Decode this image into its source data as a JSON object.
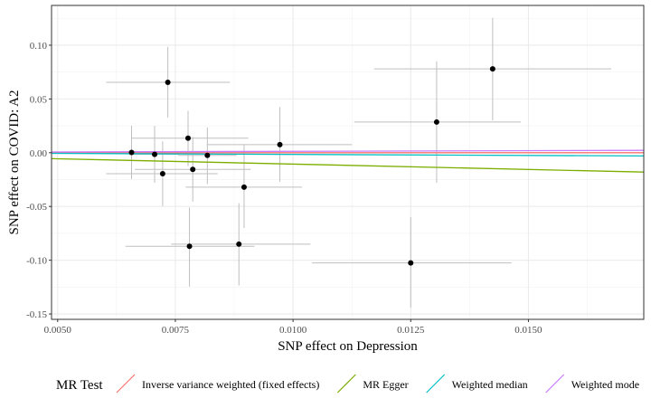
{
  "chart_data": {
    "type": "scatter",
    "xlabel": "SNP effect on Depression",
    "ylabel": "SNP effect on COVID: A2",
    "xlim": [
      0.00487,
      0.01745
    ],
    "ylim": [
      -0.155,
      0.137
    ],
    "x_ticks": [
      0.005,
      0.0075,
      0.01,
      0.0125,
      0.015
    ],
    "x_tick_labels": [
      "0.0050",
      "0.0075",
      "0.0100",
      "0.0125",
      "0.0150"
    ],
    "y_ticks": [
      -0.15,
      -0.1,
      -0.05,
      0.0,
      0.05,
      0.1
    ],
    "y_tick_labels": [
      "-0.15",
      "-0.10",
      "-0.05",
      "0.00",
      "0.05",
      "0.10"
    ],
    "grid": true,
    "points": [
      {
        "x": 0.00734,
        "y": 0.0655,
        "xmin": 0.00603,
        "xmax": 0.00866,
        "ymin": 0.0327,
        "ymax": 0.0985
      },
      {
        "x": 0.00657,
        "y": 0.0003,
        "xmin": 0.00603,
        "xmax": 0.00712,
        "ymin": -0.0245,
        "ymax": 0.025
      },
      {
        "x": 0.00706,
        "y": -0.0015,
        "xmin": 0.00657,
        "xmax": 0.00758,
        "ymin": -0.028,
        "ymax": 0.025
      },
      {
        "x": 0.00723,
        "y": -0.0195,
        "xmin": 0.00603,
        "xmax": 0.0084,
        "ymin": -0.0495,
        "ymax": 0.0105
      },
      {
        "x": 0.00777,
        "y": 0.0135,
        "xmin": 0.00657,
        "xmax": 0.00905,
        "ymin": -0.0125,
        "ymax": 0.039
      },
      {
        "x": 0.00787,
        "y": -0.0155,
        "xmin": 0.00664,
        "xmax": 0.0091,
        "ymin": -0.0455,
        "ymax": 0.0145
      },
      {
        "x": 0.00818,
        "y": -0.0025,
        "xmin": 0.00756,
        "xmax": 0.0088,
        "ymin": -0.029,
        "ymax": 0.0235
      },
      {
        "x": 0.0078,
        "y": -0.087,
        "xmin": 0.00644,
        "xmax": 0.00918,
        "ymin": -0.1245,
        "ymax": -0.051
      },
      {
        "x": 0.00885,
        "y": -0.085,
        "xmin": 0.00741,
        "xmax": 0.01037,
        "ymin": -0.1235,
        "ymax": -0.047
      },
      {
        "x": 0.00896,
        "y": -0.032,
        "xmin": 0.00772,
        "xmax": 0.01019,
        "ymin": -0.07,
        "ymax": 0.008
      },
      {
        "x": 0.00972,
        "y": 0.0075,
        "xmin": 0.00818,
        "xmax": 0.01125,
        "ymin": -0.027,
        "ymax": 0.0425
      },
      {
        "x": 0.01305,
        "y": 0.0285,
        "xmin": 0.0113,
        "xmax": 0.01484,
        "ymin": -0.028,
        "ymax": 0.085
      },
      {
        "x": 0.01424,
        "y": 0.078,
        "xmin": 0.01172,
        "xmax": 0.01676,
        "ymin": 0.03,
        "ymax": 0.1255
      },
      {
        "x": 0.0125,
        "y": -0.1025,
        "xmin": 0.0104,
        "xmax": 0.01464,
        "ymin": -0.144,
        "ymax": -0.06
      }
    ],
    "lines": [
      {
        "name": "Inverse variance weighted (fixed effects)",
        "color": "#F8766D",
        "x": [
          0.00487,
          0.01745
        ],
        "y": [
          0.0,
          0.0
        ]
      },
      {
        "name": "MR Egger",
        "color": "#7CAE00",
        "x": [
          0.00487,
          0.01745
        ],
        "y": [
          -0.0055,
          -0.018
        ]
      },
      {
        "name": "Weighted median",
        "color": "#00BFC4",
        "x": [
          0.00487,
          0.01745
        ],
        "y": [
          -0.0006,
          -0.003
        ]
      },
      {
        "name": "Weighted mode",
        "color": "#C77CFF",
        "x": [
          0.00487,
          0.01745
        ],
        "y": [
          0.0007,
          0.0022
        ]
      }
    ],
    "legend": {
      "title": "MR Test",
      "position": "bottom",
      "entries": [
        {
          "label": "Inverse variance weighted (fixed effects)",
          "color": "#F8766D"
        },
        {
          "label": "MR Egger",
          "color": "#7CAE00"
        },
        {
          "label": "Weighted median",
          "color": "#00BFC4"
        },
        {
          "label": "Weighted mode",
          "color": "#C77CFF"
        }
      ]
    }
  }
}
